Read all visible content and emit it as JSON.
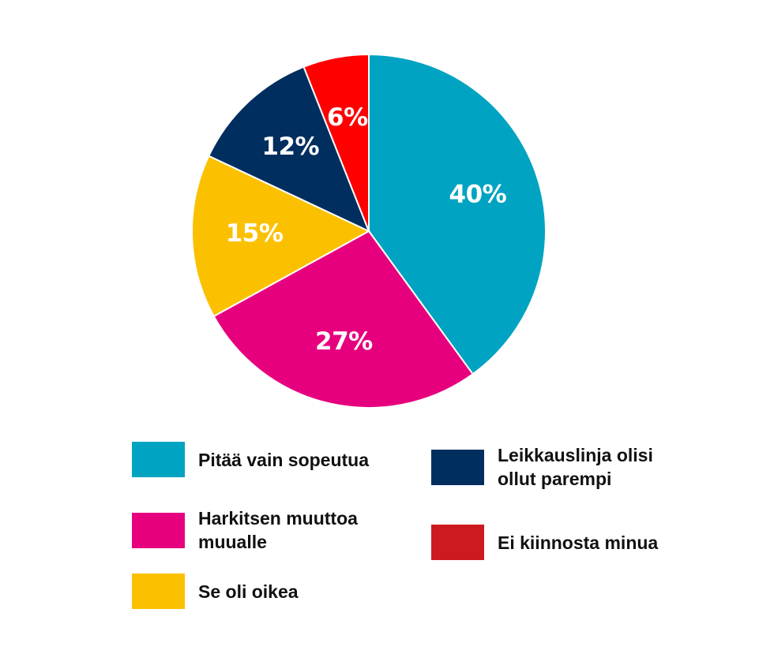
{
  "chart_data": {
    "type": "pie",
    "categories": [
      "Pitää vain sopeutua",
      "Harkitsen muuttoa\nmuualle",
      "Se oli oikea",
      "Leikkauslinja olisi\nollut parempi",
      "Ei kiinnosta minua"
    ],
    "values": [
      40,
      27,
      15,
      12,
      6
    ],
    "labels": [
      "40%",
      "27%",
      "15%",
      "12%",
      "6%"
    ],
    "colors": [
      "#00A3C1",
      "#E6007E",
      "#FBC100",
      "#002E5F",
      "#FF0000"
    ],
    "legend_colors": [
      "#00A3C1",
      "#E6007E",
      "#FBC100",
      "#002E5F",
      "#CC1A1F"
    ],
    "start_angle": "12 o'clock",
    "direction": "clockwise",
    "legend": "below"
  }
}
